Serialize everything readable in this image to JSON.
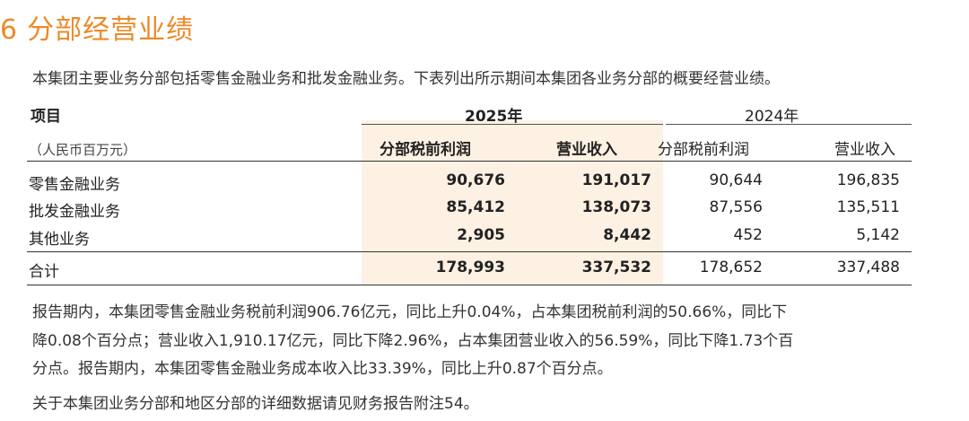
{
  "section": {
    "number": "6",
    "title": "分部经营业绩"
  },
  "intro": "本集团主要业务分部包括零售金融业务和批发金融业务。下表列出所示期间本集团各业务分部的概要经营业绩。",
  "table": {
    "item_header": "项目",
    "unit_note": "（人民币百万元）",
    "year_2025": "2025年",
    "year_2024": "2024年",
    "col_profit": "分部税前利润",
    "col_revenue": "营业收入",
    "rows": [
      {
        "label": "零售金融业务",
        "p2025": "90,676",
        "r2025": "191,017",
        "p2024": "90,644",
        "r2024": "196,835"
      },
      {
        "label": "批发金融业务",
        "p2025": "85,412",
        "r2025": "138,073",
        "p2024": "87,556",
        "r2024": "135,511"
      },
      {
        "label": "其他业务",
        "p2025": "2,905",
        "r2025": "8,442",
        "p2024": "452",
        "r2024": "5,142"
      }
    ],
    "total": {
      "label": "合计",
      "p2025": "178,993",
      "r2025": "337,532",
      "p2024": "178,652",
      "r2024": "337,488"
    },
    "highlight_color": "#fdf1e3"
  },
  "paragraphs": [
    "报告期内，本集团零售金融业务税前利润906.76亿元，同比上升0.04%，占本集团税前利润的50.66%，同比下",
    "降0.08个百分点；营业收入1,910.17亿元，同比下降2.96%，占本集团营业收入的56.59%，同比下降1.73个百",
    "分点。报告期内，本集团零售金融业务成本收入比33.39%，同比上升0.87个百分点。"
  ],
  "footnote": "关于本集团业务分部和地区分部的详细数据请见财务报告附注54。",
  "accent_color": "#ec8a2a"
}
